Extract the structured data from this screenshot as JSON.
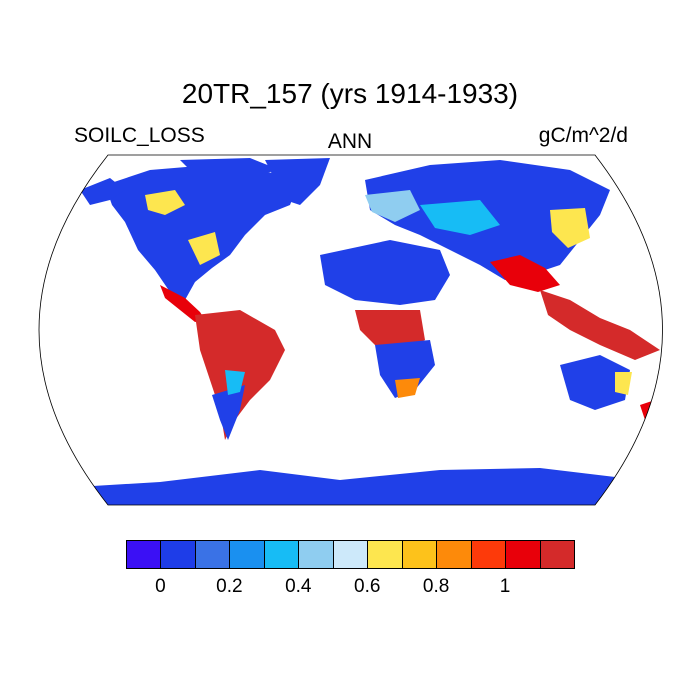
{
  "title": "20TR_157 (yrs 1914-1933)",
  "left_label": "SOILC_LOSS",
  "center_label": "ANN",
  "right_label": "gC/m^2/d",
  "colorbar": {
    "colors": [
      "#3b10f5",
      "#1e3de8",
      "#3a72e6",
      "#1a90f0",
      "#17bcf5",
      "#8fcdf0",
      "#cde9fa",
      "#fde64f",
      "#fdc21b",
      "#fd8a0a",
      "#fd3a0a",
      "#e8000a",
      "#d42a2a"
    ],
    "tick_labels": [
      "0",
      "0.2",
      "0.4",
      "0.6",
      "0.8",
      "1"
    ],
    "tick_edges": [
      1,
      3,
      5,
      7,
      9,
      11
    ]
  },
  "map_colors": {
    "low": "#2040e8",
    "low_mid": "#3a72e6",
    "mid": "#17bcf5",
    "light": "#8fcdf0",
    "yellow": "#fde64f",
    "orange": "#fd8a0a",
    "red": "#e8000a",
    "dark_red": "#d42a2a"
  }
}
